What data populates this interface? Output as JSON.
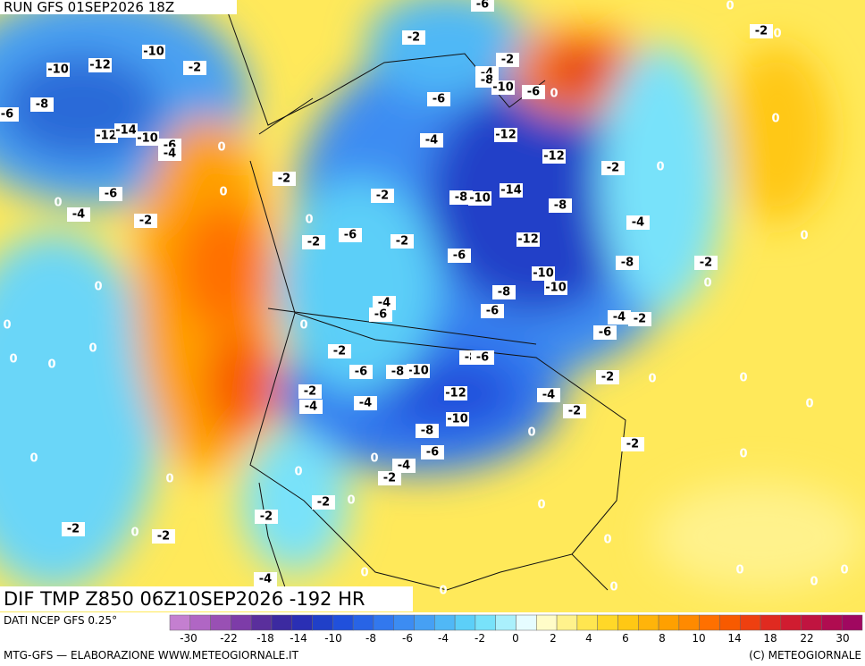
{
  "header": {
    "run": "RUN GFS 01SEP2026 18Z"
  },
  "map": {
    "contour_labels": [
      "-10",
      "-12",
      "-10",
      "-8",
      "-6",
      "-12",
      "-14",
      "-10",
      "-6",
      "-4",
      "0",
      "-2",
      "-2",
      "-6",
      "-2",
      "-4",
      "-8",
      "-10",
      "-6",
      "0",
      "0",
      "-2",
      "0",
      "0",
      "-6",
      "-4",
      "-12",
      "-12",
      "-2",
      "0",
      "-2",
      "-6",
      "0",
      "-2",
      "-8",
      "-10",
      "-14",
      "-8",
      "0",
      "-4",
      "-2",
      "0",
      "-6",
      "-2",
      "-2",
      "-4",
      "-12",
      "0",
      "-6",
      "-8",
      "-2",
      "0",
      "0",
      "-10",
      "-10",
      "-8",
      "-4",
      "-6",
      "-6",
      "-4",
      "-2",
      "0",
      "0",
      "-6",
      "0",
      "0",
      "0",
      "-2",
      "-8",
      "-6",
      "-10",
      "-8",
      "-6",
      "0",
      "0",
      "-2",
      "-2",
      "-4",
      "-4",
      "-12",
      "-4",
      "0",
      "-2",
      "-10",
      "-8",
      "0",
      "-6",
      "-2",
      "0",
      "0",
      "0",
      "-4",
      "-2",
      "0",
      "0",
      "-2",
      "0",
      "0",
      "-2",
      "-2",
      "0",
      "-2",
      "0",
      "-4",
      "0",
      "0",
      "0",
      "0",
      "0",
      "0"
    ]
  },
  "footer": {
    "product": "DIF TMP Z850 06Z10SEP2026 -192 HR",
    "source": "DATI NCEP GFS 0.25°",
    "credit": "MTG-GFS — ELABORAZIONE WWW.METEOGIORNALE.IT",
    "copyright": "(C) METEOGIORNALE"
  },
  "legend": {
    "colors": [
      "#c47fd0",
      "#b066c4",
      "#9950b4",
      "#7d3ca8",
      "#5a2f9c",
      "#3c2aa0",
      "#2a2fb4",
      "#2040c8",
      "#2050dc",
      "#2864e6",
      "#3278ee",
      "#3c8cf2",
      "#46a0f4",
      "#50b8f6",
      "#5ccff8",
      "#78e2fa",
      "#aaf0fc",
      "#e6fcff",
      "#fffcc8",
      "#fff28c",
      "#ffe650",
      "#ffd828",
      "#ffc814",
      "#ffb40a",
      "#ffa000",
      "#ff8a00",
      "#ff7000",
      "#f85a00",
      "#ee4010",
      "#e02a20",
      "#d01c30",
      "#c01440",
      "#b00c50",
      "#a00860"
    ],
    "labels": [
      "-30",
      "-22",
      "-18",
      "-14",
      "-10",
      "-8",
      "-6",
      "-4",
      "-2",
      "0",
      "2",
      "4",
      "6",
      "8",
      "10",
      "14",
      "18",
      "22",
      "30"
    ]
  }
}
